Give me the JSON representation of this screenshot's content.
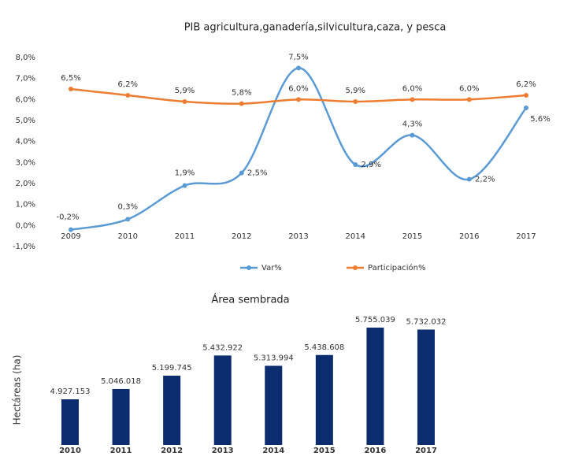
{
  "chart_data": [
    {
      "type": "line",
      "title": "PIB agricultura,ganadería,silvicultura,caza, y pesca",
      "categories": [
        "2009",
        "2010",
        "2011",
        "2012",
        "2013",
        "2014",
        "2015",
        "2016",
        "2017"
      ],
      "series": [
        {
          "name": "Var%",
          "color": "#5b9bd5",
          "values": [
            -0.2,
            0.3,
            1.9,
            2.5,
            7.5,
            2.9,
            4.3,
            2.2,
            5.6
          ],
          "value_labels": [
            "-0,2%",
            "0,3%",
            "1,9%",
            "2,5%",
            "7,5%",
            "2,9%",
            "4,3%",
            "2,2%",
            "5,6%"
          ]
        },
        {
          "name": "Participación%",
          "color": "#ed7d31",
          "values": [
            6.5,
            6.2,
            5.9,
            5.8,
            6.0,
            5.9,
            6.0,
            6.0,
            6.2
          ],
          "value_labels": [
            "6,5%",
            "6,2%",
            "5,9%",
            "5,8%",
            "6,0%",
            "5,9%",
            "6,0%",
            "6,0%",
            "6,2%"
          ]
        }
      ],
      "ylim": [
        -1,
        8
      ],
      "yticks": [
        {
          "value": 8,
          "label": "8,0%"
        },
        {
          "value": 7,
          "label": "7,0%"
        },
        {
          "value": 6,
          "label": "6,0%"
        },
        {
          "value": 5,
          "label": "5,0%"
        },
        {
          "value": 4,
          "label": "4,0%"
        },
        {
          "value": 3,
          "label": "3,0%"
        },
        {
          "value": 2,
          "label": "2,0%"
        },
        {
          "value": 1,
          "label": "1,0%"
        },
        {
          "value": 0,
          "label": "0,0%"
        },
        {
          "value": -1,
          "label": "-1,0%"
        }
      ],
      "grid": false,
      "legend": "bottom",
      "smooth": true
    },
    {
      "type": "bar",
      "title": "Área sembrada",
      "ylabel": "Hectáreas (ha)",
      "categories": [
        "2010",
        "2011",
        "2012",
        "2013",
        "2014",
        "2015",
        "2016",
        "2017"
      ],
      "values": [
        4927153,
        5046018,
        5199745,
        5432922,
        5313994,
        5438608,
        5755039,
        5732032
      ],
      "value_labels": [
        "4.927.153",
        "5.046.018",
        "5.199.745",
        "5.432.922",
        "5.313.994",
        "5.438.608",
        "5.755.039",
        "5.732.032"
      ],
      "color": "#0b2c6f",
      "ylim": [
        4400000,
        5800000
      ]
    }
  ]
}
